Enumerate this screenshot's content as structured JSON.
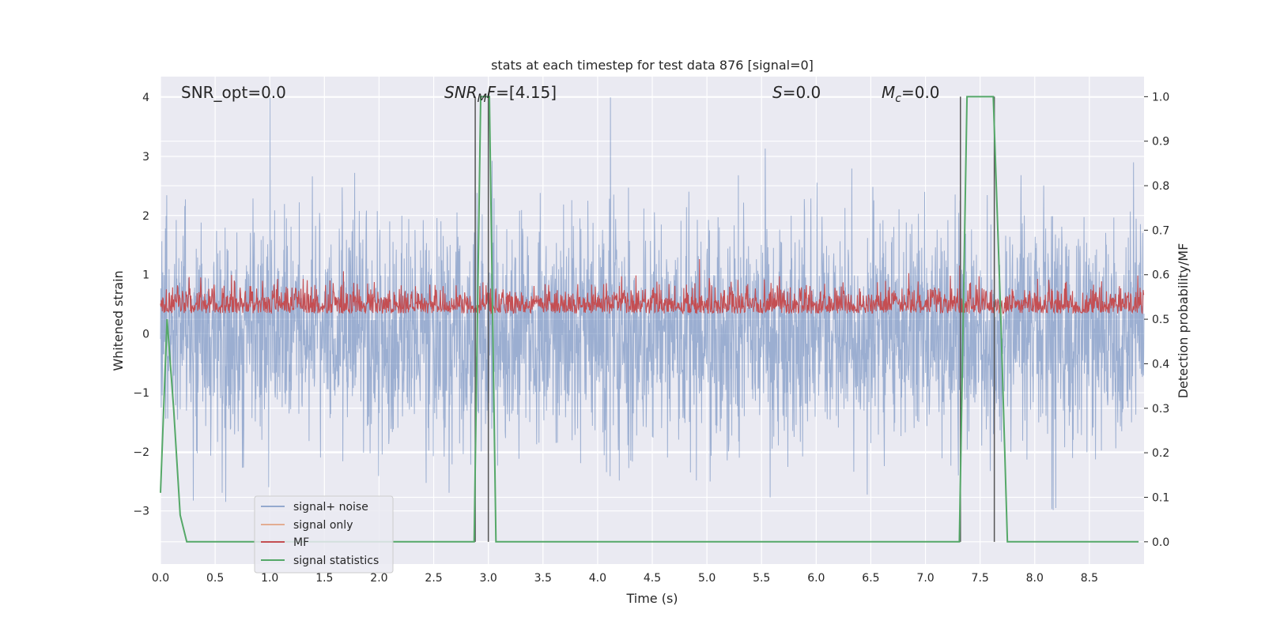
{
  "chart_data": {
    "type": "line",
    "title": "stats at each timestep for test data 876 [signal=0]",
    "xlabel": "Time (s)",
    "ylabel_left": "Whitened strain",
    "ylabel_right": "Detection probability/MF",
    "xlim": [
      0,
      9.0
    ],
    "ylim_left": [
      -3.9,
      4.35
    ],
    "ylim_right": [
      -0.05,
      1.045
    ],
    "xticks": [
      "0.0",
      "0.5",
      "1.0",
      "1.5",
      "2.0",
      "2.5",
      "3.0",
      "3.5",
      "4.0",
      "4.5",
      "5.0",
      "5.5",
      "6.0",
      "6.5",
      "7.0",
      "7.5",
      "8.0",
      "8.5"
    ],
    "yticks_left": [
      "4",
      "3",
      "2",
      "1",
      "0",
      "−1",
      "−2",
      "−3"
    ],
    "yticks_right": [
      "1.0",
      "0.9",
      "0.8",
      "0.7",
      "0.6",
      "0.5",
      "0.4",
      "0.3",
      "0.2",
      "0.1",
      "0.0"
    ],
    "annotations": [
      {
        "text": "SNR_opt=0.0",
        "x": 0.2
      },
      {
        "text": "SNR_MF=[4.15]",
        "x": 2.6
      },
      {
        "text": "S=0.0",
        "x": 5.6
      },
      {
        "text": "M_c=0.0",
        "x": 6.6
      }
    ],
    "vlines": [
      2.88,
      3.0,
      7.32,
      7.63
    ],
    "grid": true,
    "legend": {
      "placement": "lower-left",
      "entries": [
        "signal+ noise",
        "signal only",
        "MF",
        "signal statistics"
      ]
    },
    "series": [
      {
        "name": "signal+ noise",
        "axis": "left",
        "color": "#4c72b0",
        "style": "dense noise, approx range -3.5 to 4.0"
      },
      {
        "name": "signal only",
        "axis": "left",
        "color": "#dd8452",
        "values": []
      },
      {
        "name": "MF",
        "axis": "right",
        "color": "#c44e52",
        "style": "dense noise, approx range 0.47 to 0.63"
      },
      {
        "name": "signal statistics",
        "axis": "right",
        "color": "#55a868",
        "x": [
          0.0,
          0.06,
          0.12,
          0.18,
          0.24,
          0.3,
          2.87,
          2.93,
          2.96,
          3.01,
          3.07,
          7.31,
          7.38,
          7.62,
          7.69,
          7.75,
          8.95
        ],
        "y": [
          0.11,
          0.5,
          0.3,
          0.06,
          0.0,
          0.0,
          0.0,
          1.0,
          1.0,
          1.0,
          0.0,
          0.0,
          1.0,
          1.0,
          0.5,
          0.0,
          0.0
        ]
      }
    ]
  }
}
